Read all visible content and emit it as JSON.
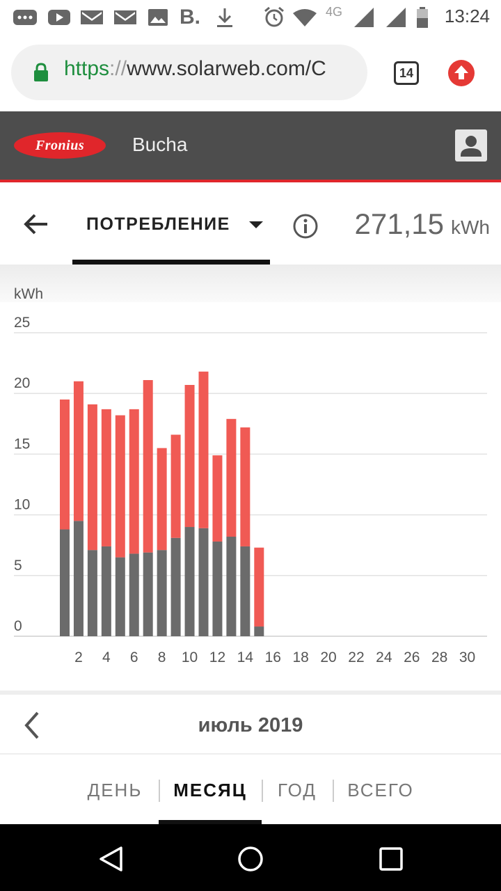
{
  "status_bar": {
    "icons": [
      "chat-icon",
      "youtube-icon",
      "gmail-icon",
      "gmail-icon",
      "gallery-icon",
      "booking-icon",
      "download-icon",
      "alarm-icon",
      "wifi-icon",
      "signal-4g-icon",
      "signal-icon",
      "battery-icon"
    ],
    "booking_letter": "B.",
    "network_label": "4G",
    "time": "13:24"
  },
  "browser": {
    "url_scheme": "https",
    "url_sep": "://",
    "url_rest": "www.solarweb.com/C",
    "tab_count": "14"
  },
  "header": {
    "logo_text": "Fronius",
    "site_name": "Bucha"
  },
  "toolbar": {
    "mode_label": "ПОТРЕБЛЕНИЕ",
    "total_value": "271,15",
    "total_unit": "kWh"
  },
  "chart_data": {
    "type": "bar",
    "stacked": true,
    "ylabel": "kWh",
    "ylim": [
      0,
      25
    ],
    "y_ticks": [
      "0",
      "5",
      "10",
      "15",
      "20",
      "25"
    ],
    "x_ticks": [
      "2",
      "4",
      "6",
      "8",
      "10",
      "12",
      "14",
      "16",
      "18",
      "20",
      "22",
      "24",
      "26",
      "28",
      "30"
    ],
    "grid": true,
    "x": [
      1,
      2,
      3,
      4,
      5,
      6,
      7,
      8,
      9,
      10,
      11,
      12,
      13,
      14,
      15
    ],
    "series": [
      {
        "color": "#6b6b6b",
        "values": [
          8.8,
          9.5,
          7.1,
          7.4,
          6.5,
          6.8,
          6.9,
          7.1,
          8.1,
          9.0,
          8.9,
          7.8,
          8.2,
          7.4,
          0.8
        ]
      },
      {
        "color": "#f05a54",
        "values": [
          10.7,
          11.5,
          12.0,
          11.3,
          11.7,
          11.9,
          14.2,
          8.4,
          8.5,
          11.7,
          12.9,
          7.1,
          9.7,
          9.8,
          6.5
        ]
      }
    ]
  },
  "month_nav": {
    "month_label": "июль 2019"
  },
  "period_tabs": [
    {
      "label": "ДЕНЬ",
      "active": false
    },
    {
      "label": "МЕСЯЦ",
      "active": true
    },
    {
      "label": "ГОД",
      "active": false
    },
    {
      "label": "ВСЕГО",
      "active": false
    }
  ]
}
